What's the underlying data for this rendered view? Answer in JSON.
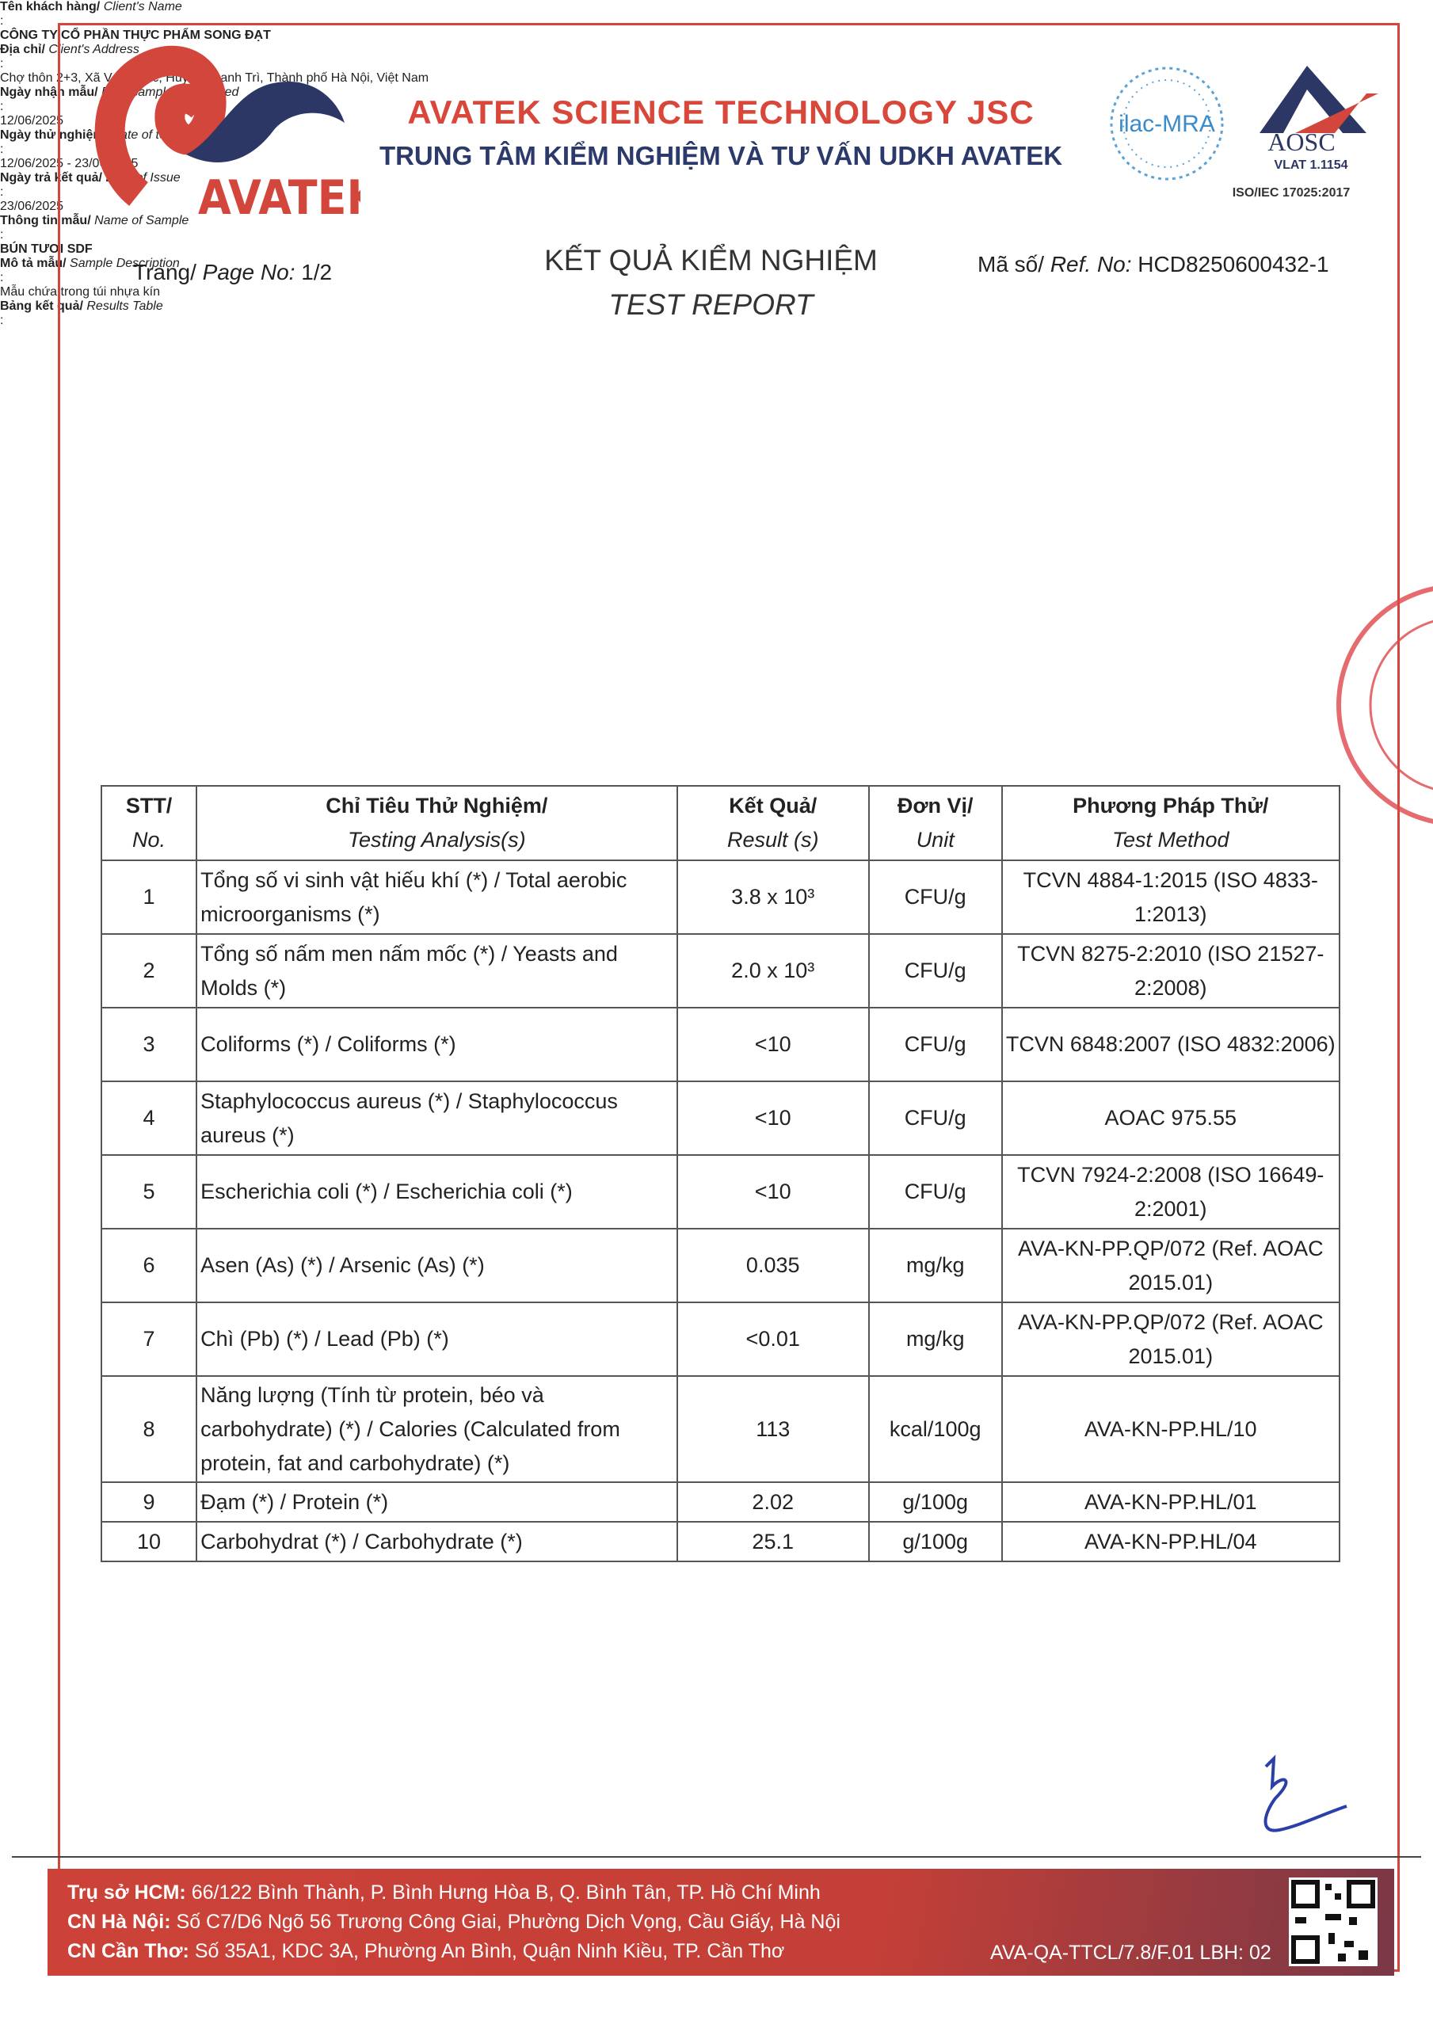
{
  "header": {
    "logo_text": "AVATEK",
    "company": "AVATEK SCIENCE TECHNOLOGY JSC",
    "center": "TRUNG TÂM KIỂM NGHIỆM VÀ TƯ VẤN UDKH AVATEK",
    "accreditation": {
      "ilac": "ilac-MRA",
      "aosc": "AOSC",
      "vlat": "VLAT 1.1154",
      "iso": "ISO/IEC 17025:2017"
    }
  },
  "page": {
    "label_vi": "Trang/",
    "label_en": "Page No:",
    "value": "1/2"
  },
  "title": {
    "vi": "KẾT QUẢ KIỂM NGHIỆM",
    "en": "TEST REPORT"
  },
  "ref": {
    "label_vi": "Mã số/",
    "label_en": "Ref. No:",
    "value": "HCD8250600432-1"
  },
  "info": {
    "separator": ":",
    "rows": [
      {
        "label_vi": "Tên khách hàng/",
        "label_en": "Client's Name",
        "value": "CÔNG TY CỔ PHẦN THỰC PHẨM SONG ĐẠT"
      },
      {
        "label_vi": "Địa chỉ/",
        "label_en": "Client's Address",
        "value": "Chợ thôn 2+3, Xã Vạn Phúc, Huyện Thanh Trì, Thành phố Hà Nội, Việt Nam"
      },
      {
        "label_vi": "Ngày nhận mẫu/",
        "label_en": "Date sample(s) received",
        "value": "12/06/2025"
      },
      {
        "label_vi": "Ngày thử nghiệm/",
        "label_en": "Date of testing",
        "value": "12/06/2025 - 23/06/2025"
      },
      {
        "label_vi": "Ngày trả kết quả/",
        "label_en": "Date of Issue",
        "value": "23/06/2025"
      },
      {
        "label_vi": "Thông tin mẫu/",
        "label_en": "Name of Sample",
        "value": "BÚN TƯƠI SDF"
      },
      {
        "label_vi": "Mô tả mẫu/",
        "label_en": "Sample Description",
        "value": "Mẫu chứa trong túi nhựa kín"
      },
      {
        "label_vi": "Bảng kết quả/",
        "label_en": "Results Table"
      }
    ]
  },
  "table": {
    "columns": [
      {
        "vi": "STT/",
        "en": "No."
      },
      {
        "vi": "Chỉ Tiêu Thử Nghiệm/",
        "en": "Testing Analysis(s)"
      },
      {
        "vi": "Kết Quả/",
        "en": "Result (s)"
      },
      {
        "vi": "Đơn Vị/",
        "en": "Unit"
      },
      {
        "vi": "Phương Pháp Thử/",
        "en": "Test Method"
      }
    ],
    "rows": [
      [
        "1",
        "Tổng số vi sinh vật hiếu khí (*) / Total aerobic microorganisms (*)",
        "3.8 x 10³",
        "CFU/g",
        "TCVN 4884-1:2015 (ISO 4833-1:2013)"
      ],
      [
        "2",
        "Tổng số nấm men nấm mốc (*) / Yeasts and Molds (*)",
        "2.0 x 10³",
        "CFU/g",
        "TCVN 8275-2:2010 (ISO 21527-2:2008)"
      ],
      [
        "3",
        "Coliforms (*) / Coliforms (*)",
        "<10",
        "CFU/g",
        "TCVN 6848:2007 (ISO 4832:2006)"
      ],
      [
        "4",
        "Staphylococcus aureus (*) / Staphylococcus aureus (*)",
        "<10",
        "CFU/g",
        "AOAC 975.55"
      ],
      [
        "5",
        "Escherichia coli (*) / Escherichia coli (*)",
        "<10",
        "CFU/g",
        "TCVN 7924-2:2008 (ISO 16649-2:2001)"
      ],
      [
        "6",
        "Asen (As) (*) / Arsenic (As) (*)",
        "0.035",
        "mg/kg",
        "AVA-KN-PP.QP/072 (Ref. AOAC 2015.01)"
      ],
      [
        "7",
        "Chì (Pb) (*) / Lead (Pb) (*)",
        "<0.01",
        "mg/kg",
        "AVA-KN-PP.QP/072 (Ref. AOAC 2015.01)"
      ],
      [
        "8",
        "Năng lượng (Tính từ protein, béo và carbohydrate) (*) / Calories (Calculated from protein, fat and carbohydrate) (*)",
        "113",
        "kcal/100g",
        "AVA-KN-PP.HL/10"
      ],
      [
        "9",
        "Đạm (*) / Protein (*)",
        "2.02",
        "g/100g",
        "AVA-KN-PP.HL/01"
      ],
      [
        "10",
        "Carbohydrat (*) / Carbohydrate (*)",
        "25.1",
        "g/100g",
        "AVA-KN-PP.HL/04"
      ]
    ]
  },
  "footer": {
    "offices": [
      {
        "label": "Trụ sở HCM:",
        "text": "66/122 Bình Thành, P. Bình Hưng Hòa B, Q. Bình Tân, TP. Hồ Chí Minh"
      },
      {
        "label": "CN Hà Nội:",
        "text": "Số C7/D6 Ngõ 56 Trương Công Giai, Phường Dịch Vọng, Cầu Giấy, Hà Nội"
      },
      {
        "label": "CN Cần Thơ:",
        "text": "Số 35A1, KDC 3A, Phường An Bình, Quận Ninh Kiều, TP. Cần Thơ"
      }
    ],
    "form_code": "AVA-QA-TTCL/7.8/F.01 LBH: 02"
  }
}
